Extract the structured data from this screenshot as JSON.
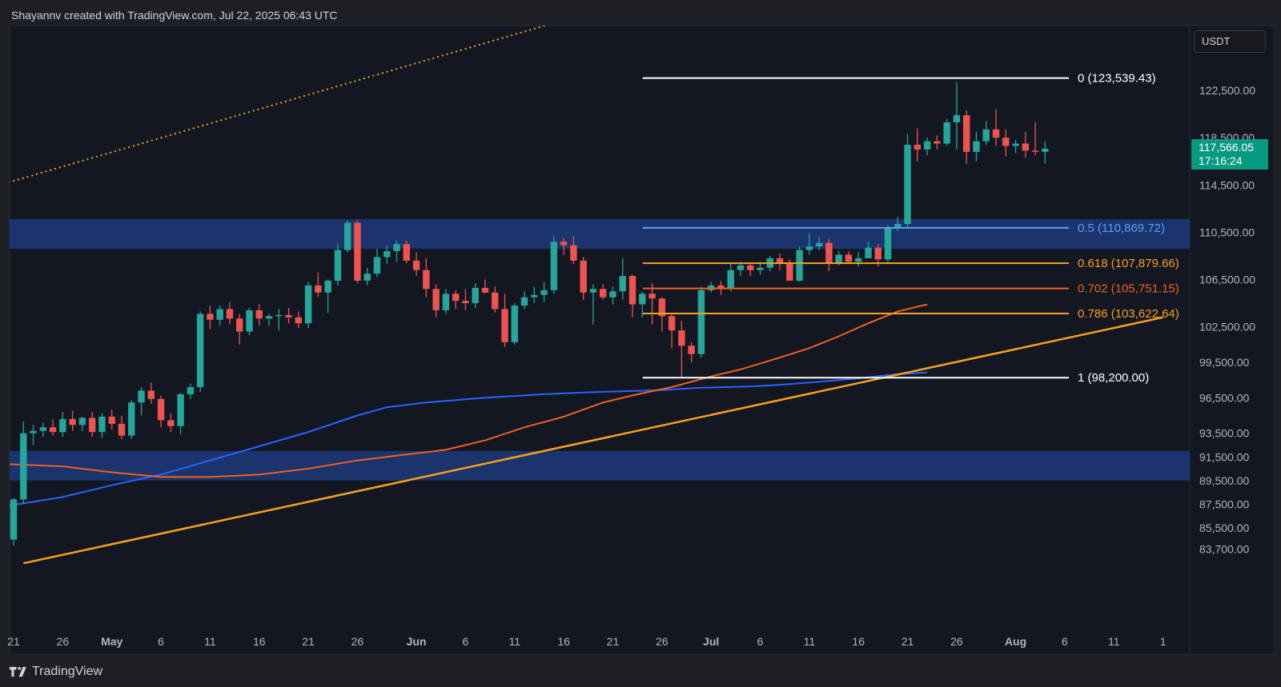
{
  "header": {
    "attribution": "Shayannv created with TradingView.com, Jul 22, 2025 06:43 UTC"
  },
  "footer": {
    "brand": "TradingView"
  },
  "currency": "USDT",
  "last_price": {
    "price": "117,566.05",
    "countdown": "17:16:24"
  },
  "colors": {
    "background": "#131722",
    "up_candle": "#26a69a",
    "down_candle": "#ef5350",
    "zone": "#1f3a7a",
    "ma_blue": "#2962ff",
    "ma_orange": "#f0601f",
    "trendline": "#f7a01f",
    "fib_white": "#ffffff",
    "fib_blue": "#5aa0f2",
    "fib_orange": "#f7a01f",
    "fib_red": "#f0601f"
  },
  "chart_data": {
    "type": "candlestick",
    "ylim": [
      81000,
      126500
    ],
    "y_ticks": [
      {
        "value": 122500,
        "label": "122,500.00"
      },
      {
        "value": 118500,
        "label": "118,500.00"
      },
      {
        "value": 114500,
        "label": "114,500.00"
      },
      {
        "value": 110500,
        "label": "110,500.00"
      },
      {
        "value": 106500,
        "label": "106,500.00"
      },
      {
        "value": 102500,
        "label": "102,500.00"
      },
      {
        "value": 99500,
        "label": "99,500.00"
      },
      {
        "value": 96500,
        "label": "96,500.00"
      },
      {
        "value": 93500,
        "label": "93,500.00"
      },
      {
        "value": 91500,
        "label": "91,500.00"
      },
      {
        "value": 89500,
        "label": "89,500.00"
      },
      {
        "value": 87500,
        "label": "87,500.00"
      },
      {
        "value": 85500,
        "label": "85,500.00"
      },
      {
        "value": 83700,
        "label": "83,700.00"
      }
    ],
    "x_ticks": [
      {
        "day": 0,
        "label": "21",
        "bold": false
      },
      {
        "day": 5,
        "label": "26",
        "bold": false
      },
      {
        "day": 10,
        "label": "May",
        "bold": true
      },
      {
        "day": 15,
        "label": "6",
        "bold": false
      },
      {
        "day": 20,
        "label": "11",
        "bold": false
      },
      {
        "day": 25,
        "label": "16",
        "bold": false
      },
      {
        "day": 30,
        "label": "21",
        "bold": false
      },
      {
        "day": 35,
        "label": "26",
        "bold": false
      },
      {
        "day": 41,
        "label": "Jun",
        "bold": true
      },
      {
        "day": 46,
        "label": "6",
        "bold": false
      },
      {
        "day": 51,
        "label": "11",
        "bold": false
      },
      {
        "day": 56,
        "label": "16",
        "bold": false
      },
      {
        "day": 61,
        "label": "21",
        "bold": false
      },
      {
        "day": 66,
        "label": "26",
        "bold": false
      },
      {
        "day": 71,
        "label": "Jul",
        "bold": true
      },
      {
        "day": 76,
        "label": "6",
        "bold": false
      },
      {
        "day": 81,
        "label": "11",
        "bold": false
      },
      {
        "day": 86,
        "label": "16",
        "bold": false
      },
      {
        "day": 91,
        "label": "21",
        "bold": false
      },
      {
        "day": 96,
        "label": "26",
        "bold": false
      },
      {
        "day": 102,
        "label": "Aug",
        "bold": true
      },
      {
        "day": 107,
        "label": "6",
        "bold": false
      },
      {
        "day": 112,
        "label": "11",
        "bold": false
      },
      {
        "day": 117,
        "label": "1",
        "bold": false
      }
    ],
    "candles": [
      [
        84500,
        88000,
        84000,
        87900
      ],
      [
        87900,
        94500,
        87500,
        93500
      ],
      [
        93500,
        94200,
        92500,
        93700
      ],
      [
        93700,
        94400,
        93200,
        94000
      ],
      [
        94000,
        94700,
        93300,
        93600
      ],
      [
        93600,
        95300,
        93200,
        94700
      ],
      [
        94700,
        95400,
        93700,
        94200
      ],
      [
        94200,
        94900,
        93700,
        94800
      ],
      [
        94800,
        95300,
        93200,
        93600
      ],
      [
        93600,
        95200,
        93100,
        94900
      ],
      [
        94900,
        95500,
        93800,
        94300
      ],
      [
        94300,
        95000,
        93000,
        93300
      ],
      [
        93300,
        96300,
        93000,
        96100
      ],
      [
        96100,
        97400,
        95000,
        97100
      ],
      [
        97100,
        97800,
        96000,
        96400
      ],
      [
        96400,
        96700,
        94000,
        94600
      ],
      [
        94600,
        95200,
        93600,
        94100
      ],
      [
        94100,
        96900,
        93400,
        96800
      ],
      [
        96800,
        97700,
        96400,
        97400
      ],
      [
        97400,
        103800,
        97000,
        103600
      ],
      [
        103600,
        104300,
        102300,
        103100
      ],
      [
        103100,
        104300,
        102600,
        104000
      ],
      [
        104000,
        104600,
        102700,
        103200
      ],
      [
        103200,
        103600,
        101000,
        102100
      ],
      [
        102100,
        104100,
        101800,
        103900
      ],
      [
        103900,
        104400,
        102600,
        103200
      ],
      [
        103200,
        103600,
        102600,
        103400
      ],
      [
        103400,
        104000,
        102200,
        103500
      ],
      [
        103500,
        104100,
        102800,
        103300
      ],
      [
        103300,
        103800,
        102400,
        102800
      ],
      [
        102800,
        106300,
        102400,
        106000
      ],
      [
        106000,
        107100,
        105000,
        105400
      ],
      [
        105400,
        106500,
        103700,
        106400
      ],
      [
        106400,
        109500,
        106000,
        109000
      ],
      [
        109000,
        111500,
        108800,
        111300
      ],
      [
        111300,
        111500,
        106200,
        106400
      ],
      [
        106400,
        107500,
        106000,
        107000
      ],
      [
        107000,
        109100,
        106700,
        108400
      ],
      [
        108400,
        109400,
        107800,
        108900
      ],
      [
        108900,
        109800,
        108000,
        109500
      ],
      [
        109500,
        109800,
        107900,
        108100
      ],
      [
        108100,
        108800,
        106800,
        107300
      ],
      [
        107300,
        108300,
        105000,
        105700
      ],
      [
        105700,
        106100,
        103300,
        103900
      ],
      [
        103900,
        105700,
        103600,
        105300
      ],
      [
        105300,
        105600,
        104000,
        104700
      ],
      [
        104700,
        105700,
        103900,
        104500
      ],
      [
        104500,
        106200,
        104100,
        105800
      ],
      [
        105800,
        106500,
        105300,
        105400
      ],
      [
        105400,
        105900,
        103700,
        104000
      ],
      [
        104000,
        105300,
        100800,
        101200
      ],
      [
        101200,
        104500,
        101000,
        104300
      ],
      [
        104300,
        105500,
        104000,
        105000
      ],
      [
        105000,
        105900,
        104500,
        105200
      ],
      [
        105200,
        106300,
        104600,
        105600
      ],
      [
        105600,
        110200,
        105300,
        109700
      ],
      [
        109700,
        110000,
        108600,
        109400
      ],
      [
        109400,
        110200,
        107800,
        108100
      ],
      [
        108100,
        108400,
        104800,
        105400
      ],
      [
        105400,
        106100,
        102700,
        105700
      ],
      [
        105700,
        106100,
        104800,
        105000
      ],
      [
        105000,
        105900,
        104400,
        105500
      ],
      [
        105500,
        108300,
        104800,
        106800
      ],
      [
        106800,
        106900,
        103300,
        104400
      ],
      [
        104400,
        105500,
        103300,
        105300
      ],
      [
        105300,
        106200,
        102700,
        104900
      ],
      [
        104900,
        105000,
        102100,
        103400
      ],
      [
        103400,
        103700,
        100700,
        102200
      ],
      [
        102200,
        103000,
        98200,
        100900
      ],
      [
        100900,
        101200,
        99500,
        100200
      ],
      [
        100200,
        105900,
        99900,
        105600
      ],
      [
        105600,
        106300,
        105400,
        106000
      ],
      [
        106000,
        106400,
        105200,
        105700
      ],
      [
        105700,
        107900,
        105500,
        107300
      ],
      [
        107300,
        108000,
        106800,
        107700
      ],
      [
        107700,
        107900,
        106800,
        107300
      ],
      [
        107300,
        108000,
        106900,
        107500
      ],
      [
        107500,
        108500,
        107200,
        108300
      ],
      [
        108300,
        108700,
        107300,
        107900
      ],
      [
        107900,
        108200,
        106400,
        106400
      ],
      [
        106400,
        109300,
        106300,
        109000
      ],
      [
        109000,
        110400,
        108600,
        109300
      ],
      [
        109300,
        110100,
        109000,
        109600
      ],
      [
        109600,
        109900,
        107200,
        107900
      ],
      [
        107900,
        108900,
        107700,
        108600
      ],
      [
        108600,
        108900,
        107900,
        108000
      ],
      [
        108000,
        108800,
        107600,
        108300
      ],
      [
        108300,
        109700,
        108300,
        109200
      ],
      [
        109200,
        109500,
        107600,
        108200
      ],
      [
        108200,
        111100,
        107900,
        110900
      ],
      [
        110900,
        111800,
        110600,
        111200
      ],
      [
        111200,
        118800,
        110800,
        117900
      ],
      [
        117900,
        119300,
        116500,
        117500
      ],
      [
        117500,
        118500,
        117000,
        118200
      ],
      [
        118200,
        118700,
        117500,
        118000
      ],
      [
        118000,
        120100,
        117800,
        119800
      ],
      [
        119800,
        123200,
        117500,
        120400
      ],
      [
        120400,
        120800,
        116300,
        117300
      ],
      [
        117300,
        119000,
        116500,
        118200
      ],
      [
        118200,
        119900,
        117900,
        119200
      ],
      [
        119200,
        120900,
        117800,
        118500
      ],
      [
        118500,
        119200,
        116900,
        117800
      ],
      [
        117800,
        118300,
        117200,
        118000
      ],
      [
        118000,
        119000,
        116800,
        117400
      ],
      [
        117400,
        119800,
        117000,
        117300
      ],
      [
        117300,
        118200,
        116300,
        117566
      ]
    ],
    "moving_averages": [
      {
        "color": "#2962ff",
        "points": [
          [
            -1,
            87300
          ],
          [
            5,
            88100
          ],
          [
            10,
            89100
          ],
          [
            15,
            90000
          ],
          [
            20,
            91200
          ],
          [
            25,
            92400
          ],
          [
            30,
            93600
          ],
          [
            35,
            95000
          ],
          [
            38,
            95700
          ],
          [
            42,
            96100
          ],
          [
            48,
            96500
          ],
          [
            54,
            96800
          ],
          [
            58,
            96950
          ],
          [
            62,
            97050
          ],
          [
            66,
            97150
          ],
          [
            70,
            97350
          ],
          [
            75,
            97450
          ],
          [
            78,
            97600
          ],
          [
            82,
            97850
          ],
          [
            86,
            98150
          ],
          [
            90,
            98500
          ],
          [
            93,
            98650
          ]
        ]
      },
      {
        "color": "#f0601f",
        "points": [
          [
            -1,
            90900
          ],
          [
            5,
            90700
          ],
          [
            10,
            90200
          ],
          [
            15,
            89800
          ],
          [
            20,
            89800
          ],
          [
            25,
            90000
          ],
          [
            30,
            90500
          ],
          [
            35,
            91200
          ],
          [
            40,
            91700
          ],
          [
            44,
            92100
          ],
          [
            48,
            92900
          ],
          [
            52,
            94000
          ],
          [
            56,
            94900
          ],
          [
            60,
            96100
          ],
          [
            63,
            96700
          ],
          [
            67,
            97400
          ],
          [
            71,
            98300
          ],
          [
            74,
            98900
          ],
          [
            78,
            99900
          ],
          [
            81,
            100700
          ],
          [
            84,
            101700
          ],
          [
            87,
            102800
          ],
          [
            90,
            103800
          ],
          [
            93,
            104400
          ]
        ]
      }
    ],
    "trendlines": [
      {
        "color": "#f7a01f",
        "style": "solid",
        "from": [
          1,
          82500
        ],
        "to": [
          117,
          103300
        ]
      },
      {
        "color": "#f7a01f",
        "style": "dotted",
        "from": [
          -1,
          114600
        ],
        "to": [
          55,
          128200
        ]
      }
    ],
    "zones": [
      {
        "from": 109100,
        "to": 111600,
        "color": "#1f3a7a"
      },
      {
        "from": 89500,
        "to": 92000,
        "color": "#1f3a7a"
      }
    ],
    "fib_levels": [
      {
        "ratio": "0",
        "value": 123539.43,
        "label": "0 (123,539.43)",
        "color": "#ffffff"
      },
      {
        "ratio": "0.5",
        "value": 110869.72,
        "label": "0.5 (110,869.72)",
        "color": "#5aa0f2"
      },
      {
        "ratio": "0.618",
        "value": 107879.66,
        "label": "0.618 (107,879.66)",
        "color": "#f7a01f"
      },
      {
        "ratio": "0.702",
        "value": 105751.15,
        "label": "0.702 (105,751.15)",
        "color": "#f0601f"
      },
      {
        "ratio": "0.786",
        "value": 103622.64,
        "label": "0.786 (103,622.64)",
        "color": "#f7a01f"
      },
      {
        "ratio": "1",
        "value": 98200.0,
        "label": "1 (98,200.00)",
        "color": "#ffffff"
      }
    ],
    "fib_range": {
      "from_day": 62,
      "to_day": 105
    }
  }
}
